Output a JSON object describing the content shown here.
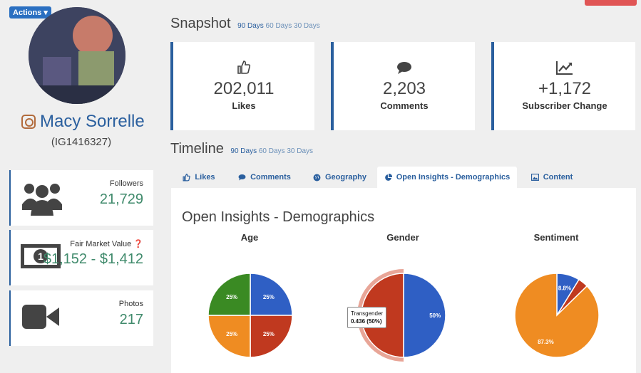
{
  "actions": {
    "label": "Actions ▾"
  },
  "profile": {
    "name": "Macy Sorrelle",
    "id": "(IG1416327)"
  },
  "stats": [
    {
      "label": "Followers",
      "value": "21,729",
      "icon": "users-icon"
    },
    {
      "label": "Fair Market Value ❓",
      "value": "$1,152 - $1,412",
      "icon": "money-icon"
    },
    {
      "label": "Photos",
      "value": "217",
      "icon": "video-icon"
    }
  ],
  "snapshot": {
    "title": "Snapshot",
    "ranges": [
      "90 Days",
      "60 Days",
      "30 Days"
    ],
    "cards": [
      {
        "value": "202,011",
        "label": "Likes",
        "icon": "thumbs-up-icon"
      },
      {
        "value": "2,203",
        "label": "Comments",
        "icon": "comment-icon"
      },
      {
        "value": "+1,172",
        "label": "Subscriber Change",
        "icon": "line-chart-icon"
      }
    ]
  },
  "timeline": {
    "title": "Timeline",
    "ranges": [
      "90 Days",
      "60 Days",
      "30 Days"
    ],
    "tabs": [
      "Likes",
      "Comments",
      "Geography",
      "Open Insights - Demographics",
      "Content"
    ],
    "active_tab": 3
  },
  "panel": {
    "title": "Open Insights - Demographics",
    "tooltip_line1": "Transgender",
    "tooltip_line2": "0.436 (50%)"
  },
  "colors": {
    "blue": "#2f5fc4",
    "red": "#c0391f",
    "orange": "#ef8c22",
    "green": "#3a8a23"
  },
  "chart_data": [
    {
      "type": "pie",
      "title": "Age",
      "series": [
        {
          "values": [
            25,
            25,
            25,
            25
          ]
        }
      ],
      "labels": [
        "25%",
        "25%",
        "25%",
        "25%"
      ]
    },
    {
      "type": "pie",
      "title": "Gender",
      "series": [
        {
          "values": [
            50,
            50
          ]
        }
      ],
      "labels": [
        "50%",
        "Transgender 0.436 (50%)"
      ]
    },
    {
      "type": "pie",
      "title": "Sentiment",
      "series": [
        {
          "values": [
            8.8,
            3.9,
            87.3
          ]
        }
      ],
      "labels": [
        "8.8%",
        "",
        "87.3%"
      ]
    }
  ]
}
